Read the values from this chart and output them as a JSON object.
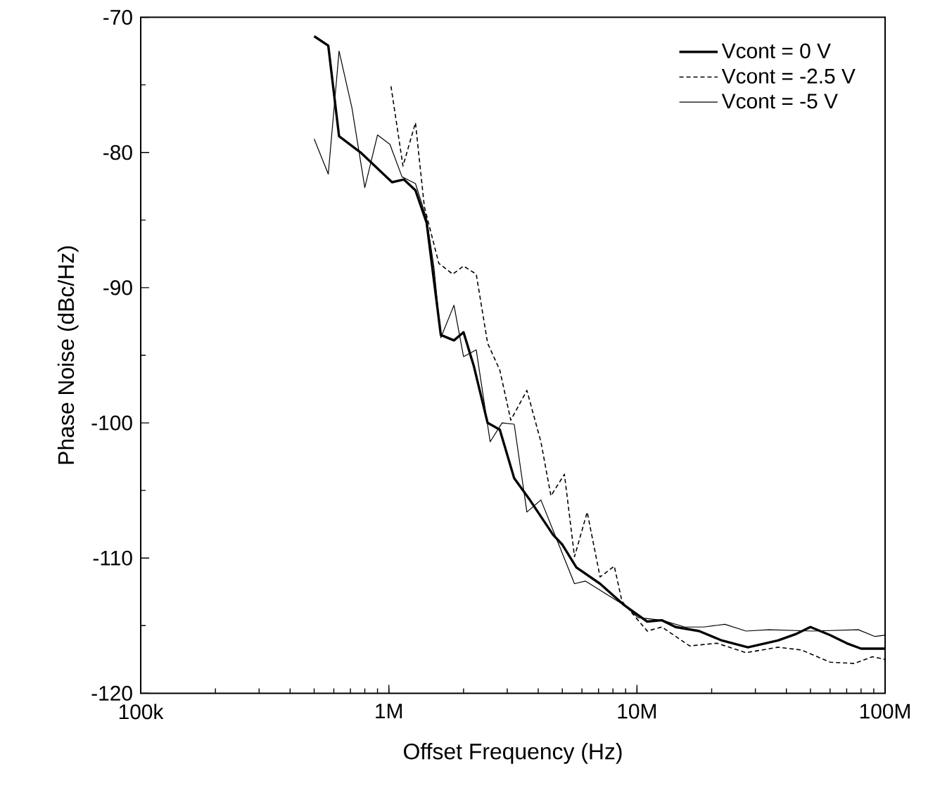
{
  "chart_data": {
    "type": "line",
    "xlabel": "Offset Frequency (Hz)",
    "ylabel": "Phase Noise (dBc/Hz)",
    "log": "x",
    "xlim": [
      100000,
      100000000
    ],
    "xticks": [
      {
        "value": 100000,
        "label": "100k"
      },
      {
        "value": 1000000,
        "label": "1M"
      },
      {
        "value": 10000000,
        "label": "10M"
      },
      {
        "value": 100000000,
        "label": "100M"
      }
    ],
    "ylim": [
      -120,
      -70
    ],
    "yticks": [
      -120,
      -110,
      -100,
      -90,
      -80,
      -70
    ],
    "grid": false,
    "legend": "top right",
    "marker": "none",
    "series": [
      {
        "name": "Vcont = 0 V",
        "color": "#000000",
        "line_style": "solid",
        "x": [
          500000,
          570000,
          630000,
          770000,
          1030000,
          1150000,
          1280000,
          1420000,
          1620000,
          1830000,
          2000000,
          2200000,
          2500000,
          2800000,
          3200000,
          3700000,
          4600000,
          5000000,
          5700000,
          7100000,
          8900000,
          11000000,
          12600000,
          14300000,
          17800000,
          22000000,
          28000000,
          37000000,
          44000000,
          50000000,
          60000000,
          70000000,
          80000000,
          100000000
        ],
        "values": [
          -71.4,
          -72.1,
          -78.8,
          -80.0,
          -82.2,
          -82.0,
          -82.8,
          -85.2,
          -93.5,
          -93.9,
          -93.3,
          -95.8,
          -100.0,
          -100.5,
          -104.1,
          -105.7,
          -108.3,
          -109.0,
          -110.7,
          -111.9,
          -113.5,
          -114.7,
          -114.6,
          -115.1,
          -115.4,
          -116.1,
          -116.6,
          -116.1,
          -115.6,
          -115.1,
          -115.7,
          -116.3,
          -116.7,
          -116.7
        ]
      },
      {
        "name": "Vcont = -2.5 V",
        "color": "#000000",
        "line_style": "dashed",
        "x": [
          1020000,
          1140000,
          1280000,
          1390000,
          1590000,
          1810000,
          2000000,
          2250000,
          2500000,
          2800000,
          3100000,
          3600000,
          4100000,
          4500000,
          5100000,
          5600000,
          6300000,
          7100000,
          8100000,
          8700000,
          11000000,
          12600000,
          16300000,
          21000000,
          27500000,
          37000000,
          46000000,
          60000000,
          75000000,
          89000000,
          100000000
        ],
        "values": [
          -75.1,
          -81.0,
          -77.8,
          -84.0,
          -88.2,
          -89.0,
          -88.4,
          -89.0,
          -94.1,
          -96.1,
          -99.8,
          -97.6,
          -101.4,
          -105.4,
          -103.8,
          -109.9,
          -106.6,
          -111.4,
          -110.6,
          -113.2,
          -115.4,
          -115.1,
          -116.5,
          -116.3,
          -117.0,
          -116.6,
          -116.8,
          -117.7,
          -117.8,
          -117.3,
          -117.5
        ]
      },
      {
        "name": "Vcont = -5 V",
        "color": "#000000",
        "line_style": "solid",
        "x": [
          500000,
          570000,
          630000,
          710000,
          800000,
          900000,
          1010000,
          1130000,
          1280000,
          1420000,
          1520000,
          1620000,
          1830000,
          2000000,
          2250000,
          2560000,
          2860000,
          3200000,
          3600000,
          4100000,
          5600000,
          6200000,
          8900000,
          10100000,
          12600000,
          15600000,
          18600000,
          22600000,
          27500000,
          34000000,
          51000000,
          78000000,
          91000000,
          100000000
        ],
        "values": [
          -79.0,
          -81.6,
          -72.5,
          -76.7,
          -82.6,
          -78.7,
          -79.4,
          -81.8,
          -82.3,
          -84.9,
          -88.5,
          -93.7,
          -91.3,
          -95.1,
          -94.6,
          -101.4,
          -100.0,
          -100.1,
          -106.6,
          -105.7,
          -111.9,
          -111.7,
          -113.5,
          -114.4,
          -114.6,
          -115.1,
          -115.1,
          -114.9,
          -115.4,
          -115.3,
          -115.4,
          -115.3,
          -115.8,
          -115.7
        ]
      }
    ]
  }
}
